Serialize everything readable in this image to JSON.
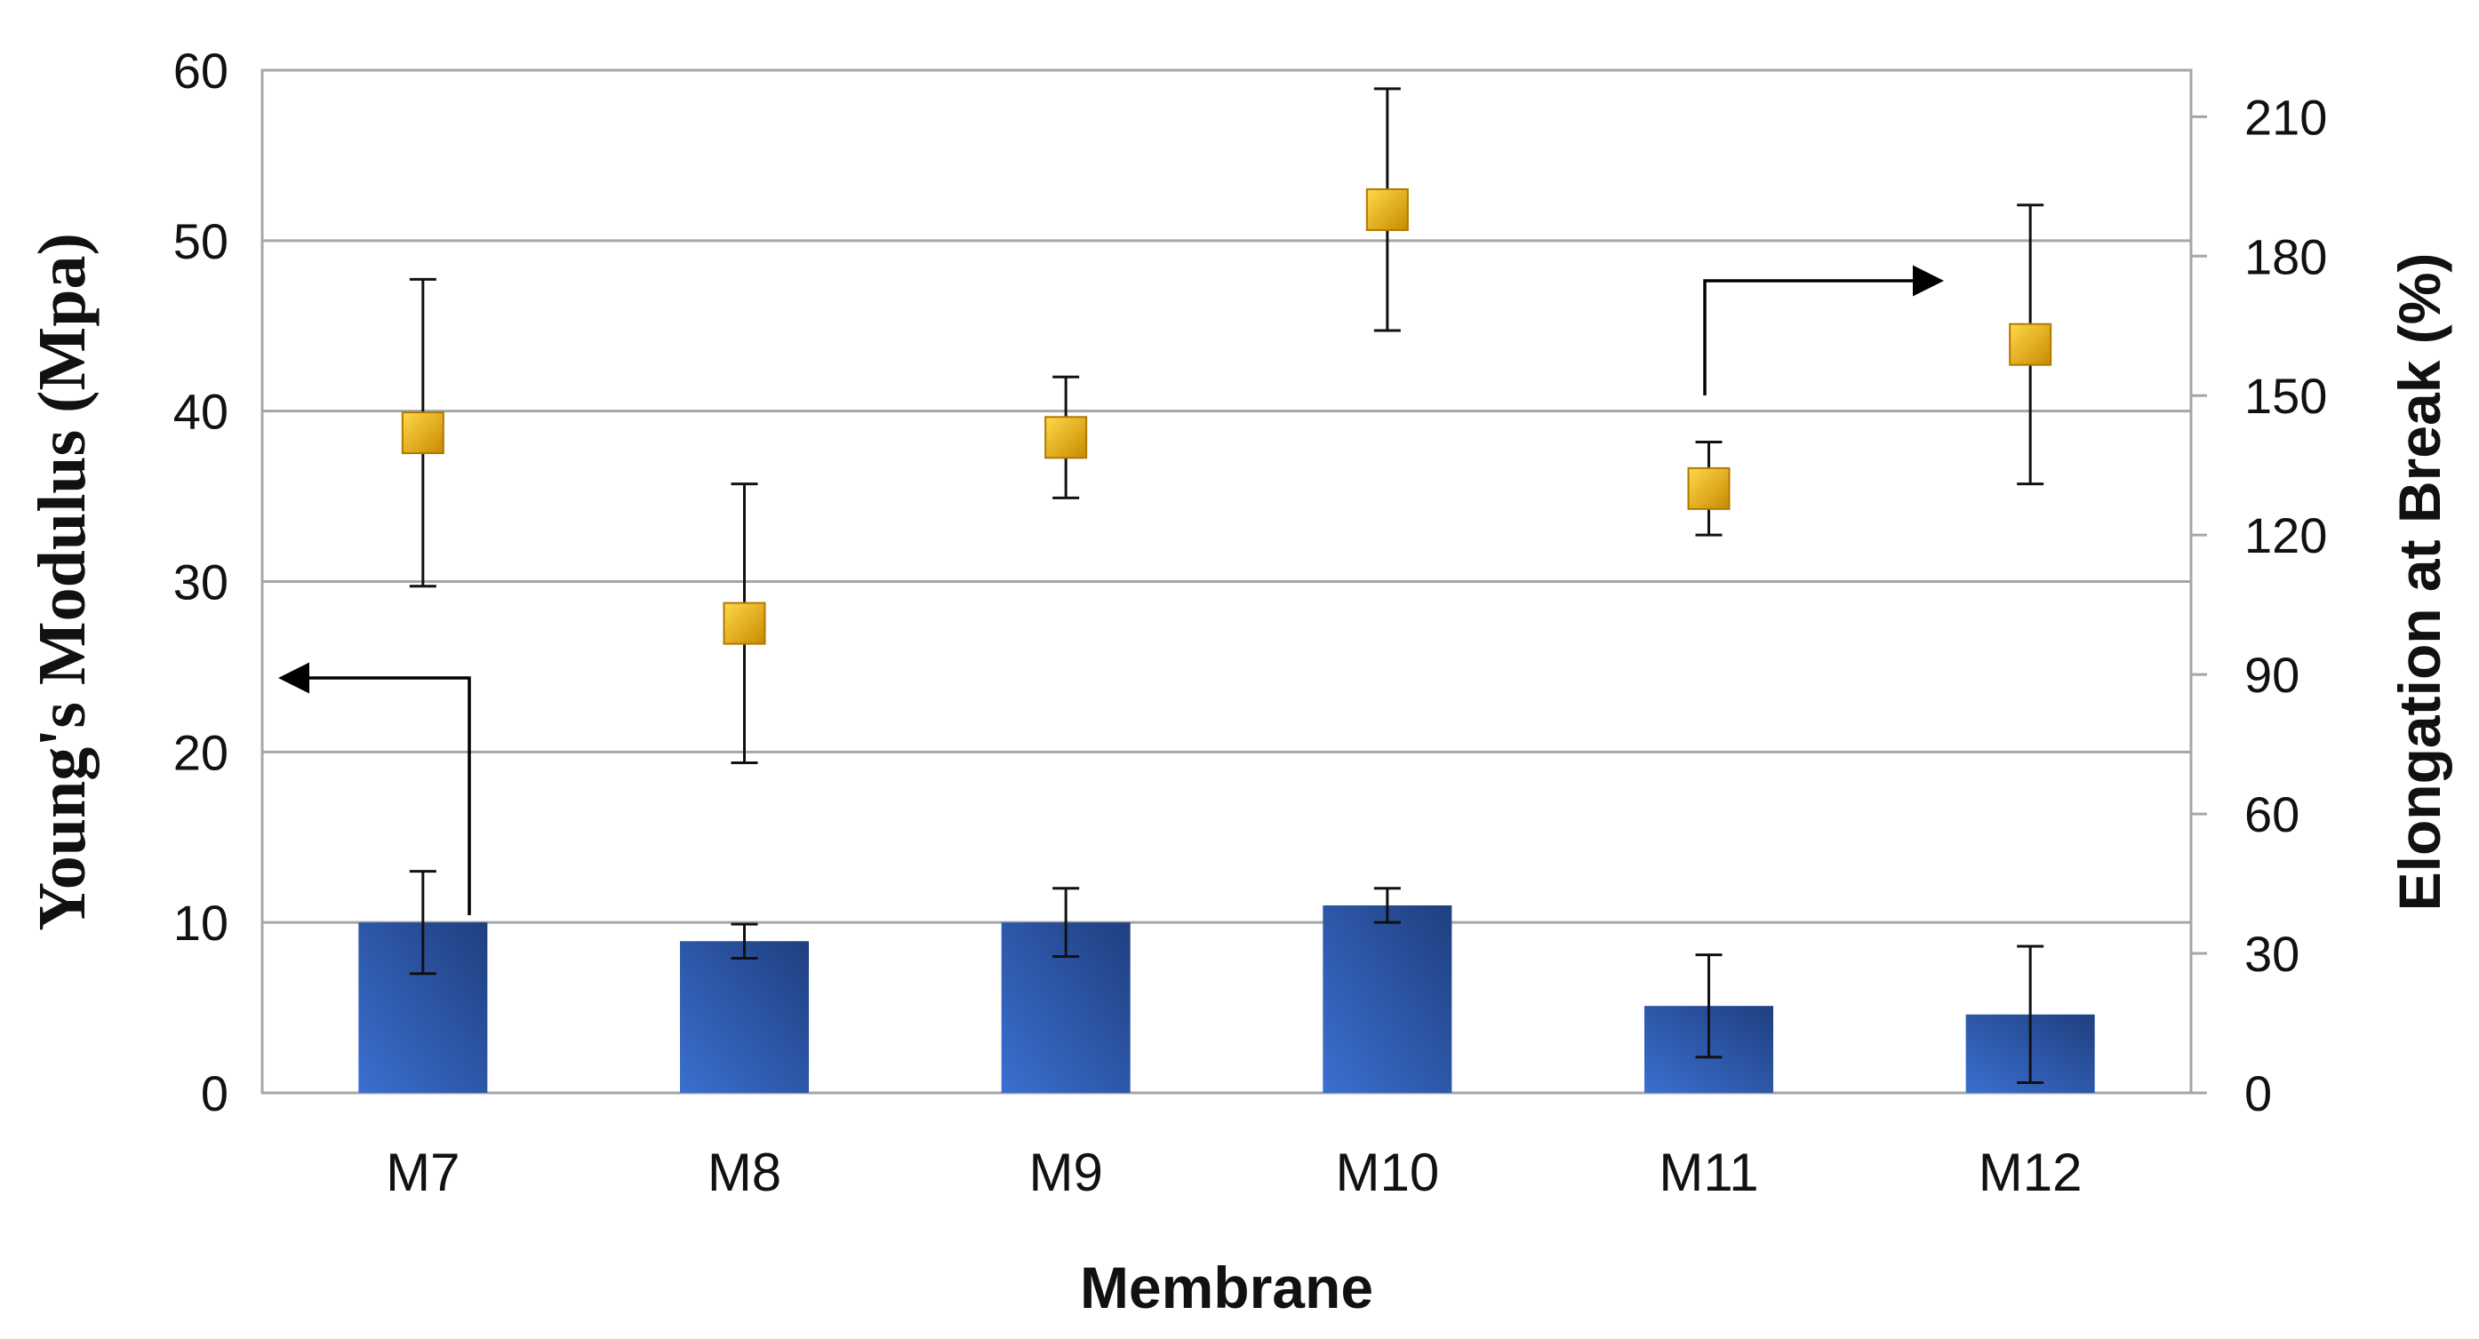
{
  "chart_data": {
    "type": "bar",
    "categories": [
      "M7",
      "M8",
      "M9",
      "M10",
      "M11",
      "M12"
    ],
    "xlabel": "Membrane",
    "ylabel": "Young's Modulus (Mpa)",
    "y2label": "Elongation at Break (%)",
    "ylim": [
      0,
      60
    ],
    "yticks": [
      0,
      10,
      20,
      30,
      40,
      50,
      60
    ],
    "y2lim": [
      0,
      220
    ],
    "y2ticks": [
      0,
      30,
      60,
      90,
      120,
      150,
      180,
      210
    ],
    "grid": true,
    "series": [
      {
        "name": "Young's Modulus",
        "kind": "bar",
        "axis": "left",
        "color": "#2f5fb3",
        "values": [
          10,
          8.9,
          10,
          11,
          5.1,
          4.6
        ],
        "error": [
          3,
          1,
          2,
          1,
          3,
          4
        ]
      },
      {
        "name": "Elongation at Break",
        "kind": "marker",
        "axis": "right",
        "color": "#e8b000",
        "values": [
          142,
          101,
          141,
          190,
          130,
          161
        ],
        "error": [
          33,
          30,
          13,
          26,
          10,
          30
        ]
      }
    ],
    "annotations": [
      {
        "type": "arrow",
        "points_to": "left-axis",
        "near": "M7"
      },
      {
        "type": "arrow",
        "points_to": "right-axis",
        "near": "M11"
      }
    ]
  }
}
